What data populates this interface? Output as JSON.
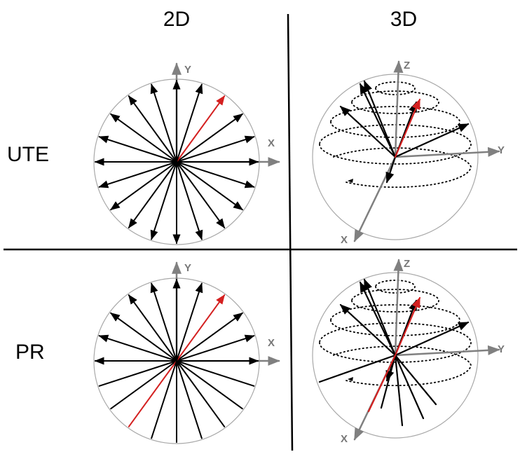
{
  "headers": {
    "col_2d": "2D",
    "col_3d": "3D"
  },
  "rows": {
    "ute": "UTE",
    "pr": "PR"
  },
  "axis_labels": {
    "x": "X",
    "y": "Y",
    "z": "Z"
  },
  "colors": {
    "spoke": "#000000",
    "highlight": "#d42020",
    "axis": "#808080",
    "circle": "#a8a8a8",
    "divider": "#000000"
  }
}
